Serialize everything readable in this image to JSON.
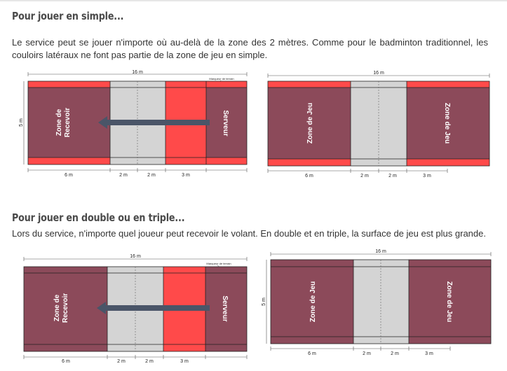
{
  "section1": {
    "heading": "Pour jouer en simple...",
    "paragraph": "Le service peut se jouer n'importe où au-delà de la zone des 2 mètres. Comme pour le badminton traditionnel, les couloirs latéraux ne font pas partie de la zone de jeu en simple."
  },
  "section2": {
    "heading": "Pour jouer en double ou en triple...",
    "paragraph": "Lors du service, n'importe quel joueur peut recevoir le volant. En double et en triple, la surface de jeu est plus grande."
  },
  "labels": {
    "length": "16 m",
    "width": "5 m",
    "seg_6": "6 m",
    "seg_2a": "2 m",
    "seg_2b": "2 m",
    "seg_3": "3 m",
    "marker": "Marqueur de terrain",
    "zone_receiver_1": "Zone de",
    "zone_receiver_2": "Recevoir",
    "server": "Serveur",
    "zone_jeu": "Zone de Jeu"
  },
  "colors": {
    "maroon": "#8c4a5a",
    "red": "#ff4a4a",
    "grey": "#d4d4d4",
    "arrow": "#4a5568"
  }
}
